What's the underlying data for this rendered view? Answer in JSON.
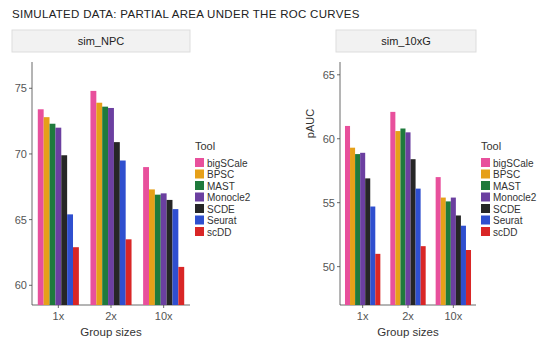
{
  "title": "SIMULATED DATA: PARTIAL AREA UNDER THE ROC CURVES",
  "chart_data": [
    {
      "type": "bar",
      "title": "sim_NPC",
      "x_label": "Group sizes",
      "legend_title": "Tool",
      "legend": "right",
      "grid": false,
      "categories": [
        "1x",
        "2x",
        "10x"
      ],
      "ylim": [
        58.5,
        77
      ],
      "yticks": [
        60,
        65,
        70,
        75
      ],
      "series": [
        {
          "name": "bigSCale",
          "color": "#e8509c",
          "values": [
            73.4,
            74.8,
            69.0
          ]
        },
        {
          "name": "BPSC",
          "color": "#e6a019",
          "values": [
            72.8,
            73.9,
            67.3
          ]
        },
        {
          "name": "MAST",
          "color": "#1f7a3c",
          "values": [
            72.3,
            73.6,
            66.9
          ]
        },
        {
          "name": "Monocle2",
          "color": "#6b3fa0",
          "values": [
            72.0,
            73.5,
            67.0
          ]
        },
        {
          "name": "SCDE",
          "color": "#262626",
          "values": [
            69.9,
            70.9,
            66.5
          ]
        },
        {
          "name": "Seurat",
          "color": "#2f4fcf",
          "values": [
            65.4,
            69.5,
            65.8
          ]
        },
        {
          "name": "scDD",
          "color": "#d92626",
          "values": [
            62.9,
            63.5,
            61.4
          ]
        }
      ]
    },
    {
      "type": "bar",
      "title": "sim_10xG",
      "x_label": "Group sizes",
      "y_label": "pAUC",
      "legend_title": "Tool",
      "legend": "right",
      "grid": false,
      "categories": [
        "1x",
        "2x",
        "10x"
      ],
      "ylim": [
        47,
        66
      ],
      "yticks": [
        50,
        55,
        60,
        65
      ],
      "series": [
        {
          "name": "bigSCale",
          "color": "#e8509c",
          "values": [
            61.0,
            62.1,
            57.0
          ]
        },
        {
          "name": "BPSC",
          "color": "#e6a019",
          "values": [
            59.3,
            60.6,
            55.4
          ]
        },
        {
          "name": "MAST",
          "color": "#1f7a3c",
          "values": [
            58.8,
            60.8,
            55.1
          ]
        },
        {
          "name": "Monocle2",
          "color": "#6b3fa0",
          "values": [
            58.9,
            60.5,
            55.4
          ]
        },
        {
          "name": "SCDE",
          "color": "#262626",
          "values": [
            56.9,
            58.4,
            54.0
          ]
        },
        {
          "name": "Seurat",
          "color": "#2f4fcf",
          "values": [
            54.7,
            56.1,
            53.2
          ]
        },
        {
          "name": "scDD",
          "color": "#d92626",
          "values": [
            51.0,
            51.6,
            51.3
          ]
        }
      ]
    }
  ]
}
